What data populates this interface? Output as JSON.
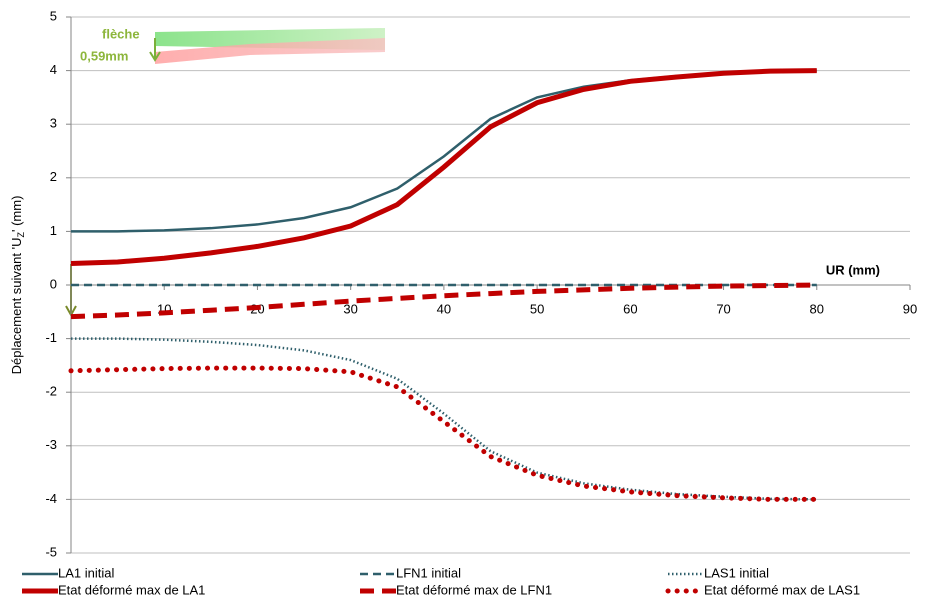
{
  "chart_data": {
    "type": "line",
    "ylabel": [
      "Déplacement suivant 'U",
      "Z",
      "' (mm)"
    ],
    "xlabel": "UR (mm)",
    "annotations": [
      "flèche",
      "0,59mm"
    ],
    "x": [
      0,
      5,
      10,
      15,
      20,
      25,
      30,
      35,
      40,
      45,
      50,
      55,
      60,
      65,
      70,
      75,
      80
    ],
    "xlim": [
      0,
      90
    ],
    "xticks": [
      10,
      20,
      30,
      40,
      50,
      60,
      70,
      80,
      90
    ],
    "ylim": [
      -5,
      5
    ],
    "yticks": [
      -5,
      -4,
      -3,
      -2,
      -1,
      0,
      1,
      2,
      3,
      4,
      5
    ],
    "grid": true,
    "series": [
      {
        "name": "LA1 initial",
        "color": "#2f5f6b",
        "line_style": "solid",
        "weight": "thin",
        "values": [
          1,
          1.0,
          1.02,
          1.06,
          1.13,
          1.25,
          1.45,
          1.8,
          2.4,
          3.1,
          3.5,
          3.7,
          3.82,
          3.9,
          3.95,
          3.99,
          4.0
        ]
      },
      {
        "name": "Etat déformé max de LA1",
        "color": "#c00000",
        "line_style": "solid",
        "weight": "thick",
        "values": [
          0.4,
          0.43,
          0.5,
          0.6,
          0.72,
          0.88,
          1.1,
          1.5,
          2.2,
          2.95,
          3.4,
          3.65,
          3.8,
          3.88,
          3.95,
          3.99,
          4.0
        ]
      },
      {
        "name": "LFN1 initial",
        "color": "#2f5f6b",
        "line_style": "dashed",
        "weight": "thin",
        "values": [
          0,
          0,
          0,
          0,
          0,
          0,
          0,
          0,
          0,
          0,
          0,
          0,
          0,
          0,
          0,
          0,
          0
        ]
      },
      {
        "name": "Etat déformé max de LFN1",
        "color": "#c00000",
        "line_style": "dashed",
        "weight": "thick",
        "values": [
          -0.59,
          -0.56,
          -0.52,
          -0.47,
          -0.42,
          -0.36,
          -0.3,
          -0.25,
          -0.2,
          -0.16,
          -0.12,
          -0.09,
          -0.06,
          -0.04,
          -0.02,
          -0.01,
          0
        ]
      },
      {
        "name": "LAS1 initial",
        "color": "#2f5f6b",
        "line_style": "dotted",
        "weight": "thin",
        "values": [
          -1,
          -1.0,
          -1.02,
          -1.06,
          -1.12,
          -1.22,
          -1.4,
          -1.75,
          -2.4,
          -3.1,
          -3.5,
          -3.7,
          -3.82,
          -3.9,
          -3.95,
          -3.99,
          -4.0
        ]
      },
      {
        "name": "Etat déformé max de LAS1",
        "color": "#c00000",
        "line_style": "dotted",
        "weight": "thick",
        "values": [
          -1.6,
          -1.58,
          -1.56,
          -1.55,
          -1.55,
          -1.56,
          -1.62,
          -1.9,
          -2.55,
          -3.2,
          -3.55,
          -3.75,
          -3.86,
          -3.93,
          -3.97,
          -4.0,
          -4.0
        ]
      }
    ]
  }
}
